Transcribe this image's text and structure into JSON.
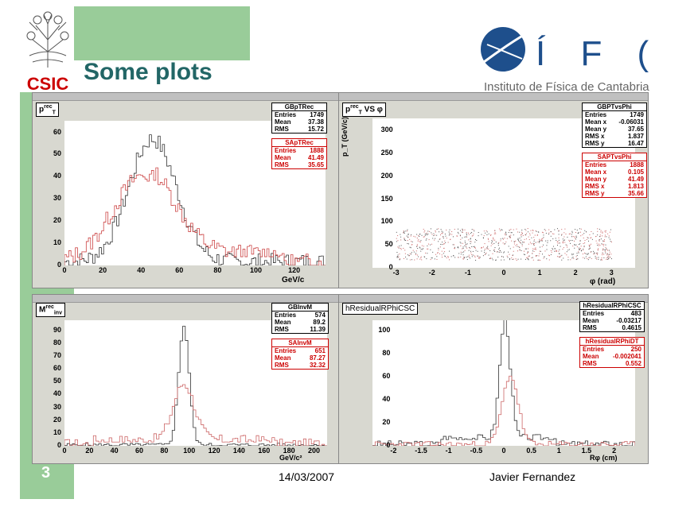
{
  "slide": {
    "title": "Some plots",
    "page_number": "3",
    "date": "14/03/2007",
    "author": "Javier Fernandez"
  },
  "logos": {
    "csic": "CSIC",
    "ifca_text": "Í F ( A",
    "ifca_subtitle": "Instituto de Física de Cantabria"
  },
  "panels": [
    {
      "title_main": "p",
      "title_sup": "rec",
      "title_sub": "T",
      "xlabel": "GeV/c",
      "stats": [
        {
          "name": "GBpTRec",
          "rows": [
            [
              "Entries",
              "1749"
            ],
            [
              "Mean",
              "37.38"
            ],
            [
              "RMS",
              "15.72"
            ]
          ],
          "color": "black"
        },
        {
          "name": "SApTRec",
          "rows": [
            [
              "Entries",
              "1888"
            ],
            [
              "Mean",
              "41.49"
            ],
            [
              "RMS",
              "35.65"
            ]
          ],
          "color": "red"
        }
      ],
      "xticks": [
        "0",
        "20",
        "40",
        "60",
        "80",
        "100",
        "120"
      ],
      "yticks": [
        "0",
        "10",
        "20",
        "30",
        "40",
        "50",
        "60"
      ]
    },
    {
      "title_main": "p",
      "title_sup": "rec",
      "title_sub": "T",
      "title_rest": " VS φ",
      "ylabel": "p_T (GeV/c)",
      "xlabel": "φ (rad)",
      "stats": [
        {
          "name": "GBPTvsPhi",
          "rows": [
            [
              "Entries",
              "1749"
            ],
            [
              "Mean x",
              "-0.06031"
            ],
            [
              "Mean y",
              "37.65"
            ],
            [
              "RMS x",
              "1.837"
            ],
            [
              "RMS y",
              "16.47"
            ]
          ],
          "color": "black"
        },
        {
          "name": "SAPTvsPhi",
          "rows": [
            [
              "Entries",
              "1888"
            ],
            [
              "Mean x",
              "0.105"
            ],
            [
              "Mean y",
              "41.49"
            ],
            [
              "RMS x",
              "1.813"
            ],
            [
              "RMS y",
              "35.66"
            ]
          ],
          "color": "red"
        }
      ],
      "xticks": [
        "-3",
        "-2",
        "-1",
        "0",
        "1",
        "2",
        "3"
      ],
      "yticks": [
        "0",
        "50",
        "100",
        "150",
        "200",
        "250",
        "300"
      ]
    },
    {
      "title_main": "M",
      "title_sup": "rec",
      "title_sub": "inv",
      "xlabel": "GeV/c²",
      "stats": [
        {
          "name": "GBInvM",
          "rows": [
            [
              "Entries",
              "574"
            ],
            [
              "Mean",
              "89.2"
            ],
            [
              "RMS",
              "11.39"
            ]
          ],
          "color": "black"
        },
        {
          "name": "SAInvM",
          "rows": [
            [
              "Entries",
              "651"
            ],
            [
              "Mean",
              "87.27"
            ],
            [
              "RMS",
              "32.32"
            ]
          ],
          "color": "red"
        }
      ],
      "xticks": [
        "0",
        "20",
        "40",
        "60",
        "80",
        "100",
        "120",
        "140",
        "160",
        "180",
        "200"
      ],
      "yticks": [
        "0",
        "10",
        "20",
        "30",
        "40",
        "50",
        "60",
        "70",
        "80",
        "90"
      ]
    },
    {
      "title_main": "hResidualRPhiCSC",
      "xlabel": "Rφ (cm)",
      "stats": [
        {
          "name": "hResidualRPhiCSC",
          "rows": [
            [
              "Entries",
              "483"
            ],
            [
              "Mean",
              "-0.03217"
            ],
            [
              "RMS",
              "0.4615"
            ]
          ],
          "color": "black"
        },
        {
          "name": "hResidualRPhiDT",
          "rows": [
            [
              "Entries",
              "250"
            ],
            [
              "Mean",
              "-0.002041"
            ],
            [
              "RMS",
              "0.552"
            ]
          ],
          "color": "red"
        }
      ],
      "xticks": [
        "-2",
        "-1.5",
        "-1",
        "-0.5",
        "0",
        "0.5",
        "1",
        "1.5",
        "2"
      ],
      "yticks": [
        "0",
        "20",
        "40",
        "60",
        "80",
        "100"
      ]
    }
  ],
  "colors": {
    "title": "#226666",
    "sidebar": "#99cc99",
    "csic_red": "#cc0000",
    "ifca_blue": "#1e4f8c"
  }
}
